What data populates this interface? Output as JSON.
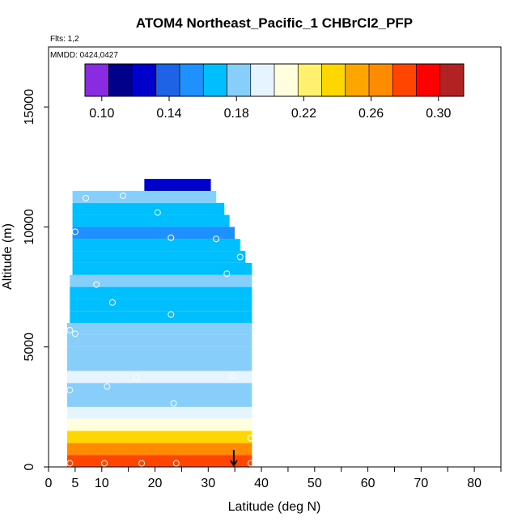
{
  "chart_data": {
    "type": "heatmap",
    "title": "ATOM4 Northeast_Pacific_1 CHBrCl2_PFP",
    "flights_label": "Flts: 1,2",
    "dates_label": "MMDD: 0424,0427",
    "xlabel": "Latitude (deg N)",
    "ylabel": "Altitude (m)",
    "xlim": [
      0,
      85
    ],
    "ylim": [
      0,
      17500
    ],
    "x_tick_labels": [
      "0",
      "5",
      "10",
      "20",
      "30",
      "40",
      "50",
      "60",
      "70",
      "80"
    ],
    "x_tick_values": [
      0,
      5,
      10,
      20,
      30,
      40,
      50,
      60,
      70,
      80
    ],
    "y_tick_labels": [
      "0",
      "5000",
      "10000",
      "15000"
    ],
    "y_tick_values": [
      0,
      5000,
      10000,
      15000
    ],
    "colorbar": {
      "range": [
        0.09,
        0.315
      ],
      "tick_labels": [
        "0.10",
        "0.14",
        "0.18",
        "0.22",
        "0.26",
        "0.30"
      ],
      "tick_values": [
        0.1,
        0.14,
        0.18,
        0.22,
        0.26,
        0.3
      ],
      "colors": [
        "#8a2be2",
        "#00008b",
        "#0000cd",
        "#1e62e6",
        "#1e90ff",
        "#00bfff",
        "#87cefa",
        "#e6f4ff",
        "#ffffe0",
        "#fff06e",
        "#ffd700",
        "#ffa500",
        "#ff8c00",
        "#ff4500",
        "#ff0000",
        "#b22222"
      ]
    },
    "value_range": [
      0.1,
      0.3
    ],
    "bands": [
      {
        "alt_min": 0,
        "alt_max": 500,
        "lat_min": 3.5,
        "lat_max": 38.2,
        "value": 0.275
      },
      {
        "alt_min": 500,
        "alt_max": 1000,
        "lat_min": 3.5,
        "lat_max": 38.2,
        "value": 0.262
      },
      {
        "alt_min": 1000,
        "alt_max": 1500,
        "lat_min": 3.5,
        "lat_max": 38.2,
        "value": 0.236
      },
      {
        "alt_min": 1500,
        "alt_max": 2000,
        "lat_min": 3.5,
        "lat_max": 38.2,
        "value": 0.214
      },
      {
        "alt_min": 2000,
        "alt_max": 2500,
        "lat_min": 3.5,
        "lat_max": 38.2,
        "value": 0.196
      },
      {
        "alt_min": 2500,
        "alt_max": 3000,
        "lat_min": 3.5,
        "lat_max": 38.2,
        "value": 0.178
      },
      {
        "alt_min": 3000,
        "alt_max": 3500,
        "lat_min": 3.5,
        "lat_max": 38.2,
        "value": 0.186
      },
      {
        "alt_min": 3500,
        "alt_max": 4000,
        "lat_min": 3.5,
        "lat_max": 38.2,
        "value": 0.194
      },
      {
        "alt_min": 4000,
        "alt_max": 4500,
        "lat_min": 3.5,
        "lat_max": 38.2,
        "value": 0.176
      },
      {
        "alt_min": 4500,
        "alt_max": 5000,
        "lat_min": 3.5,
        "lat_max": 38.2,
        "value": 0.184
      },
      {
        "alt_min": 5000,
        "alt_max": 5500,
        "lat_min": 3.5,
        "lat_max": 38.2,
        "value": 0.178
      },
      {
        "alt_min": 5500,
        "alt_max": 6000,
        "lat_min": 3.5,
        "lat_max": 38.2,
        "value": 0.186
      },
      {
        "alt_min": 6000,
        "alt_max": 6500,
        "lat_min": 4.0,
        "lat_max": 38.2,
        "value": 0.174
      },
      {
        "alt_min": 6500,
        "alt_max": 7000,
        "lat_min": 4.0,
        "lat_max": 38.2,
        "value": 0.17
      },
      {
        "alt_min": 7000,
        "alt_max": 7500,
        "lat_min": 4.0,
        "lat_max": 38.2,
        "value": 0.168
      },
      {
        "alt_min": 7500,
        "alt_max": 8000,
        "lat_min": 4.0,
        "lat_max": 38.2,
        "value": 0.176
      },
      {
        "alt_min": 8000,
        "alt_max": 8500,
        "lat_min": 4.5,
        "lat_max": 38.2,
        "value": 0.17
      },
      {
        "alt_min": 8500,
        "alt_max": 9000,
        "lat_min": 4.5,
        "lat_max": 37.0,
        "value": 0.172
      },
      {
        "alt_min": 9000,
        "alt_max": 9500,
        "lat_min": 4.5,
        "lat_max": 36.0,
        "value": 0.166
      },
      {
        "alt_min": 9500,
        "alt_max": 10000,
        "lat_min": 4.5,
        "lat_max": 35.0,
        "value": 0.158
      },
      {
        "alt_min": 10000,
        "alt_max": 10500,
        "lat_min": 4.5,
        "lat_max": 34.0,
        "value": 0.164
      },
      {
        "alt_min": 10500,
        "alt_max": 11000,
        "lat_min": 4.5,
        "lat_max": 33.0,
        "value": 0.172
      },
      {
        "alt_min": 11000,
        "alt_max": 11500,
        "lat_min": 4.5,
        "lat_max": 31.5,
        "value": 0.176
      },
      {
        "alt_min": 11500,
        "alt_max": 12000,
        "lat_min": 18.0,
        "lat_max": 30.5,
        "value": 0.128
      }
    ],
    "points": [
      {
        "lat": 4.0,
        "alt": 150
      },
      {
        "lat": 10.5,
        "alt": 150
      },
      {
        "lat": 17.5,
        "alt": 150
      },
      {
        "lat": 24.0,
        "alt": 150
      },
      {
        "lat": 38.0,
        "alt": 150
      },
      {
        "lat": 38.0,
        "alt": 1200
      },
      {
        "lat": 23.5,
        "alt": 2650
      },
      {
        "lat": 4.0,
        "alt": 3200
      },
      {
        "lat": 11.0,
        "alt": 3350
      },
      {
        "lat": 16.5,
        "alt": 3700
      },
      {
        "lat": 34.5,
        "alt": 3800
      },
      {
        "lat": 5.0,
        "alt": 5550
      },
      {
        "lat": 4.0,
        "alt": 5700
      },
      {
        "lat": 23.0,
        "alt": 6350
      },
      {
        "lat": 12.0,
        "alt": 6850
      },
      {
        "lat": 9.0,
        "alt": 7600
      },
      {
        "lat": 33.5,
        "alt": 8050
      },
      {
        "lat": 36.0,
        "alt": 8750
      },
      {
        "lat": 31.5,
        "alt": 9500
      },
      {
        "lat": 23.0,
        "alt": 9550
      },
      {
        "lat": 5.0,
        "alt": 9800
      },
      {
        "lat": 20.5,
        "alt": 10600
      },
      {
        "lat": 14.0,
        "alt": 11300
      },
      {
        "lat": 7.0,
        "alt": 11200
      }
    ],
    "marker_latitude": 34.8
  }
}
